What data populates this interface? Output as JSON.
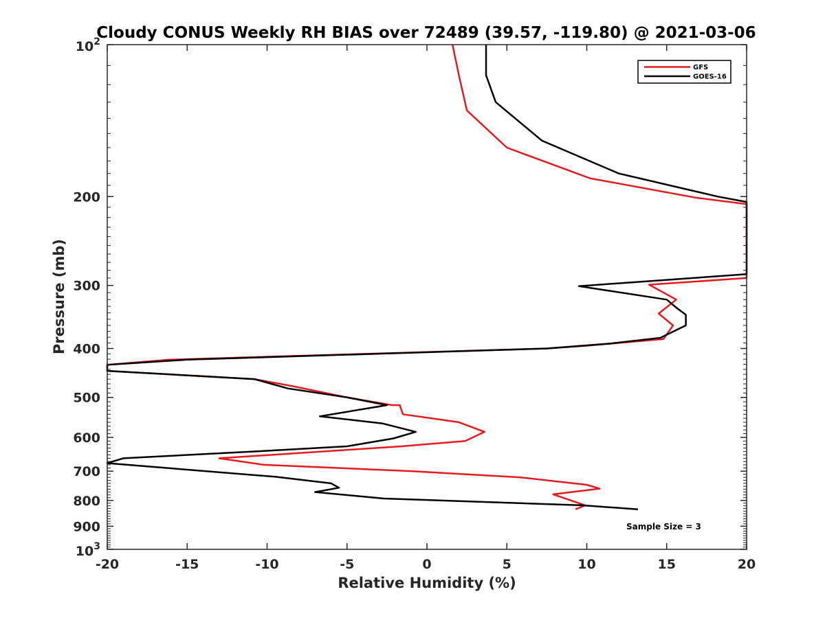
{
  "chart_data": {
    "type": "line",
    "title": "Cloudy CONUS Weekly RH BIAS over 72489 (39.57, -119.80) @ 2021-03-06",
    "xlabel": "Relative Humidity (%)",
    "ylabel": "Pressure (mb)",
    "xlim": [
      -20,
      20
    ],
    "ylim": [
      100,
      1000
    ],
    "y_scale": "log",
    "y_reversed": true,
    "grid": false,
    "legend_position": "top-right",
    "x_ticks": [
      -20,
      -15,
      -10,
      -5,
      0,
      5,
      10,
      15,
      20
    ],
    "y_ticks": [
      {
        "value": 100,
        "base": "10",
        "exp": "2"
      },
      {
        "value": 200,
        "label": "200"
      },
      {
        "value": 300,
        "label": "300"
      },
      {
        "value": 400,
        "label": "400"
      },
      {
        "value": 500,
        "label": "500"
      },
      {
        "value": 600,
        "label": "600"
      },
      {
        "value": 700,
        "label": "700"
      },
      {
        "value": 800,
        "label": "800"
      },
      {
        "value": 900,
        "label": "900"
      },
      {
        "value": 1000,
        "base": "10",
        "exp": "3"
      }
    ],
    "annotation": "Sample Size = 3",
    "series": [
      {
        "name": "GFS",
        "color": "#e41a1c",
        "points": [
          [
            1.6,
            100
          ],
          [
            2.0,
            115
          ],
          [
            2.5,
            135
          ],
          [
            5.0,
            160
          ],
          [
            10.2,
            184
          ],
          [
            16.8,
            201
          ],
          [
            20.0,
            207
          ],
          [
            20.0,
            290
          ],
          [
            13.9,
            299
          ],
          [
            15.6,
            320
          ],
          [
            14.5,
            341
          ],
          [
            15.4,
            360
          ],
          [
            14.8,
            383
          ],
          [
            10.0,
            395
          ],
          [
            7.5,
            400
          ],
          [
            -16.1,
            421
          ],
          [
            -20.0,
            431
          ],
          [
            -20.0,
            443
          ],
          [
            -10.8,
            460
          ],
          [
            -8.4,
            475
          ],
          [
            -5.0,
            500
          ],
          [
            -2.2,
            518
          ],
          [
            -1.7,
            518
          ],
          [
            -1.5,
            540
          ],
          [
            2.0,
            560
          ],
          [
            3.6,
            585
          ],
          [
            2.4,
            610
          ],
          [
            -1.6,
            625
          ],
          [
            -13.0,
            660
          ],
          [
            -10.2,
            680
          ],
          [
            -1.0,
            700
          ],
          [
            5.8,
            720
          ],
          [
            10.0,
            745
          ],
          [
            10.8,
            758
          ],
          [
            7.9,
            778
          ],
          [
            9.9,
            818
          ],
          [
            9.3,
            833
          ]
        ]
      },
      {
        "name": "GOES-16",
        "color": "#000000",
        "points": [
          [
            3.7,
            100
          ],
          [
            3.7,
            115
          ],
          [
            4.3,
            130
          ],
          [
            7.2,
            155
          ],
          [
            12.0,
            180
          ],
          [
            18.2,
            200
          ],
          [
            20.0,
            205
          ],
          [
            20.0,
            285
          ],
          [
            9.5,
            301
          ],
          [
            15.0,
            320
          ],
          [
            15.6,
            332
          ],
          [
            16.2,
            343
          ],
          [
            16.2,
            360
          ],
          [
            14.6,
            381
          ],
          [
            11.5,
            391
          ],
          [
            7.5,
            400
          ],
          [
            -15.0,
            421
          ],
          [
            -20.0,
            431
          ],
          [
            -20.0,
            443
          ],
          [
            -10.8,
            460
          ],
          [
            -8.7,
            480
          ],
          [
            -5.0,
            500
          ],
          [
            -2.5,
            518
          ],
          [
            -6.7,
            545
          ],
          [
            -2.8,
            563
          ],
          [
            -0.7,
            585
          ],
          [
            -2.1,
            603
          ],
          [
            -5.0,
            625
          ],
          [
            -10.8,
            640
          ],
          [
            -19.0,
            660
          ],
          [
            -20.0,
            675
          ],
          [
            -9.5,
            718
          ],
          [
            -6.0,
            740
          ],
          [
            -5.5,
            755
          ],
          [
            -7.0,
            770
          ],
          [
            -2.7,
            793
          ],
          [
            9.7,
            818
          ],
          [
            13.2,
            833
          ]
        ]
      }
    ]
  }
}
